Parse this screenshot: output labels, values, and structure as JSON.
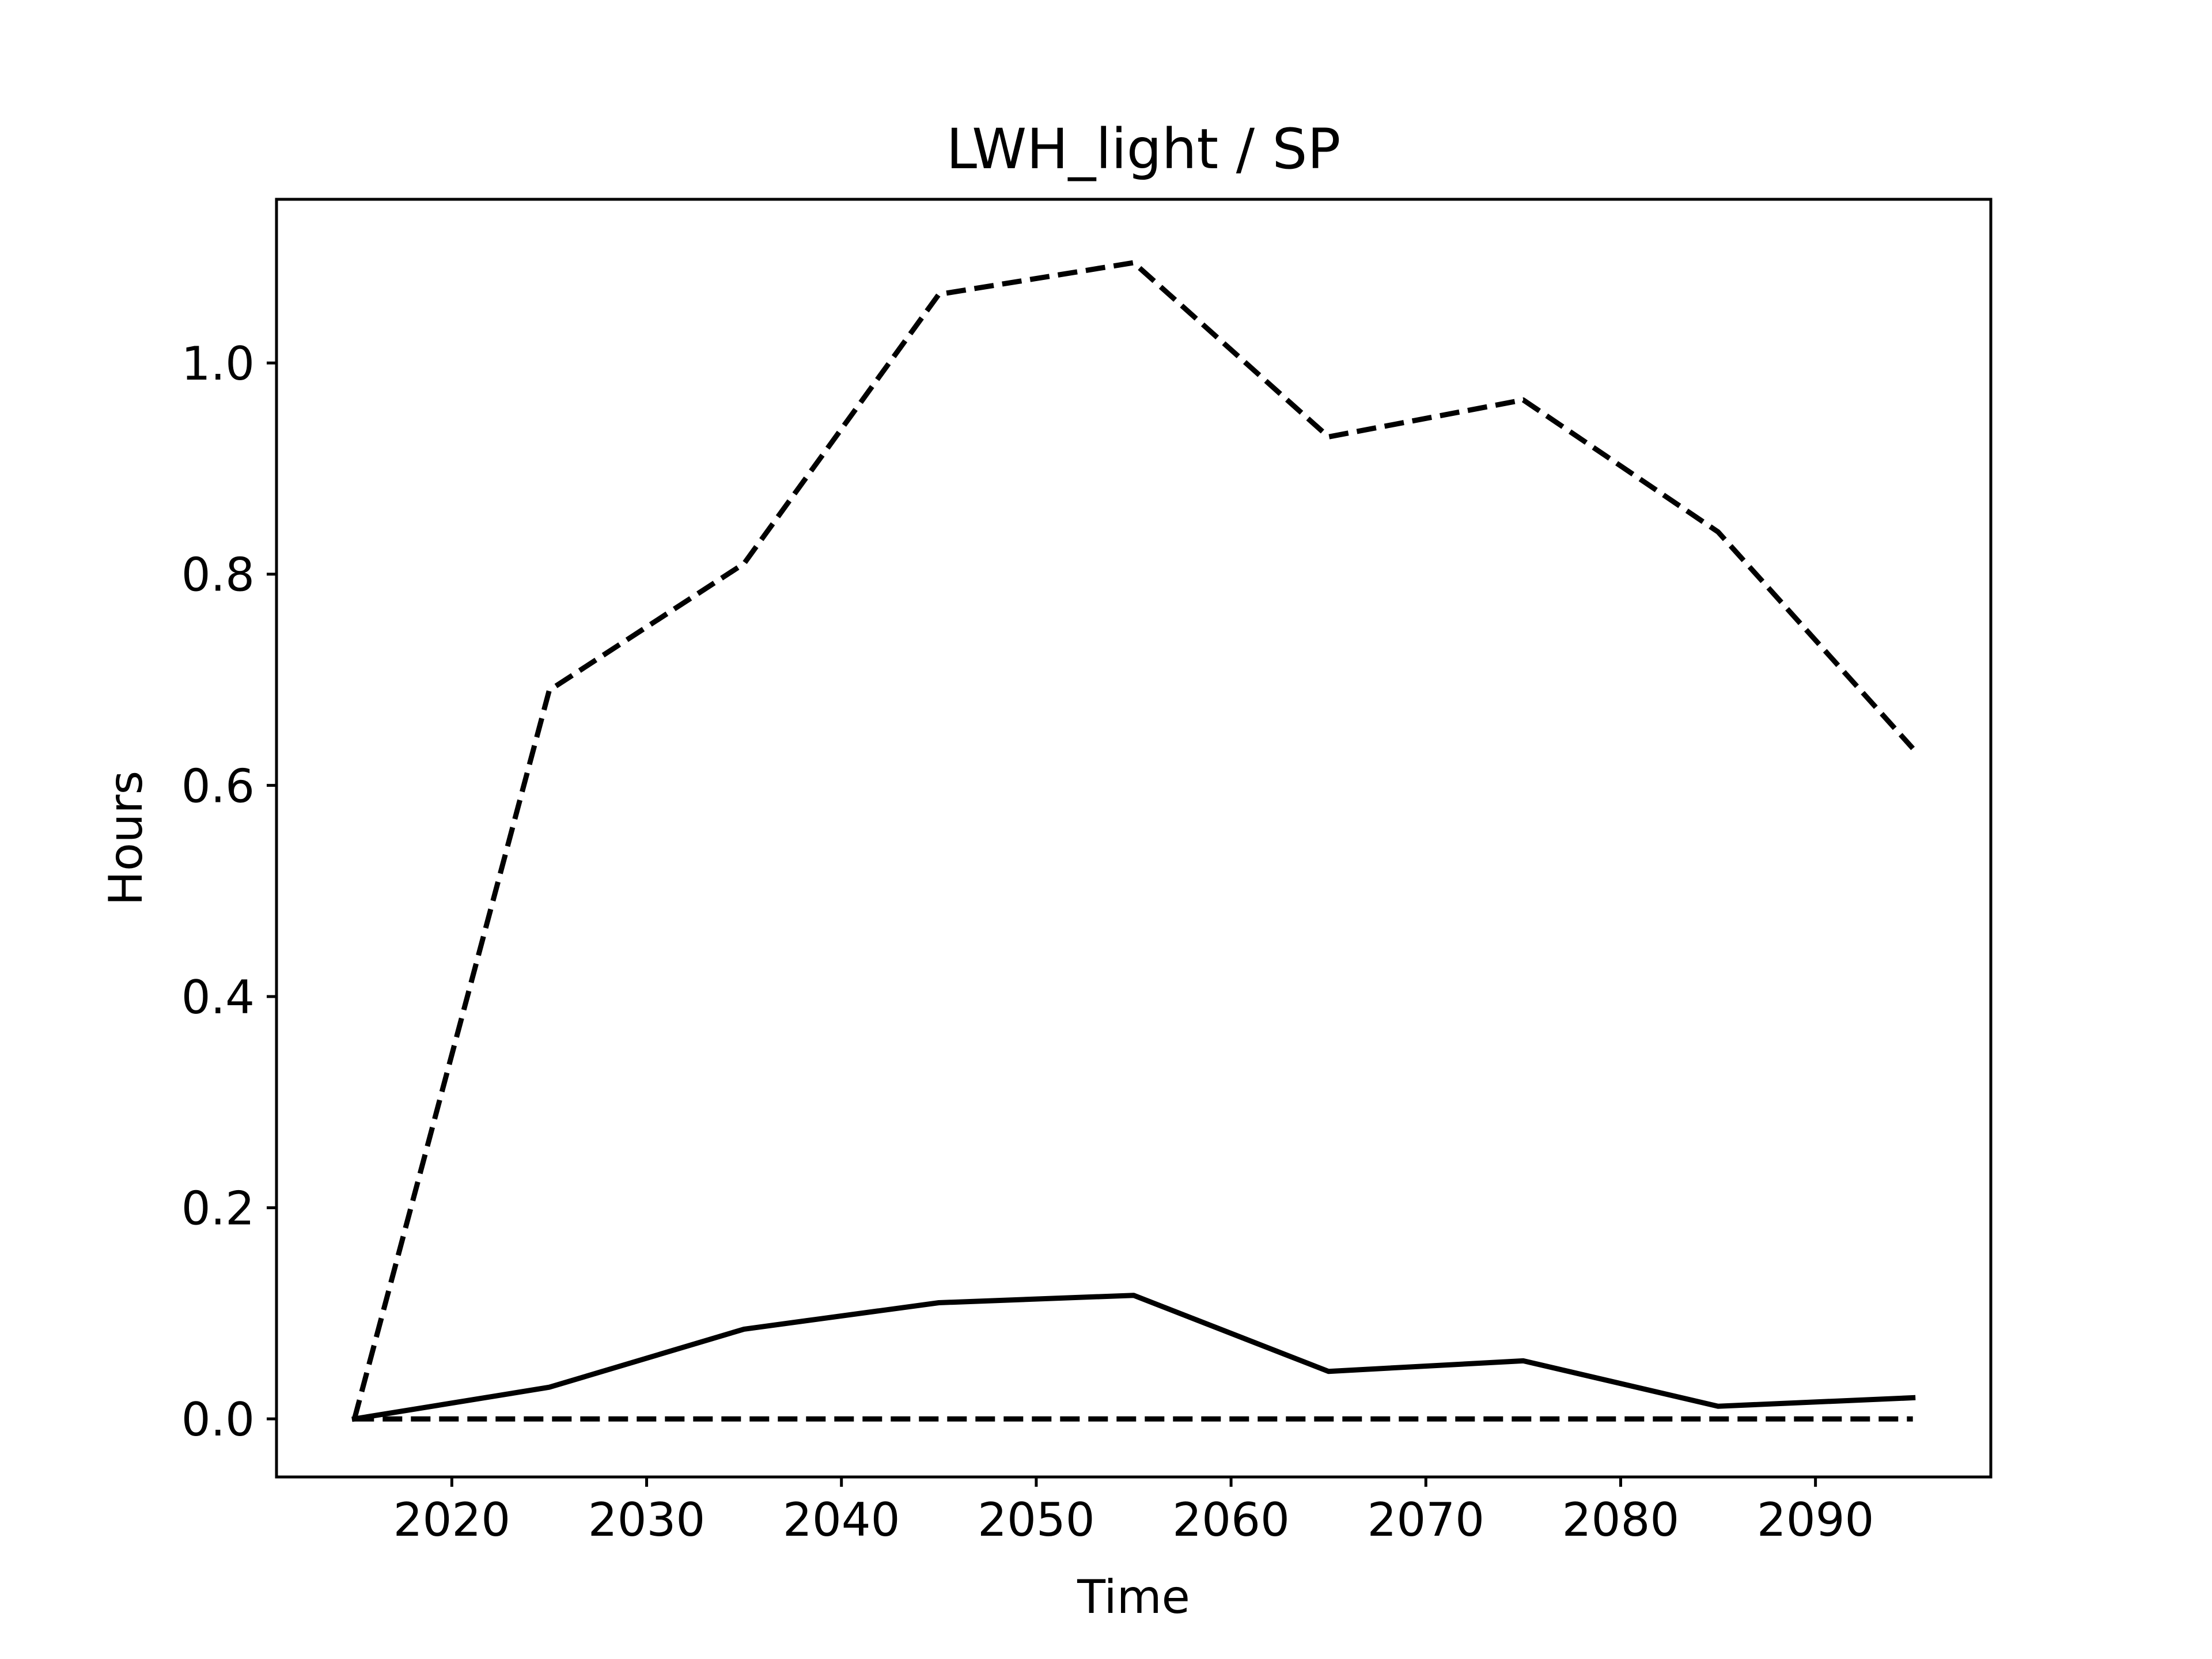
{
  "chart_data": {
    "type": "line",
    "title": "LWH_light / SP",
    "xlabel": "Time",
    "ylabel": "Hours",
    "xlim": [
      2011,
      2099
    ],
    "ylim": [
      -0.055,
      1.155
    ],
    "xticks": [
      2020,
      2030,
      2040,
      2050,
      2060,
      2070,
      2080,
      2090
    ],
    "yticks": [
      0.0,
      0.2,
      0.4,
      0.6,
      0.8,
      1.0
    ],
    "ytick_labels": [
      "0.0",
      "0.2",
      "0.4",
      "0.6",
      "0.8",
      "1.0"
    ],
    "grid": false,
    "legend": "none",
    "x": [
      2015,
      2025,
      2035,
      2045,
      2055,
      2065,
      2075,
      2085,
      2095
    ],
    "series": [
      {
        "style": "solid",
        "color": "#000000",
        "values": [
          0.0,
          0.03,
          0.085,
          0.11,
          0.117,
          0.045,
          0.055,
          0.012,
          0.02
        ]
      },
      {
        "style": "dashed",
        "color": "#000000",
        "values": [
          0.0,
          0.69,
          0.81,
          1.065,
          1.095,
          0.93,
          0.965,
          0.84,
          0.635
        ]
      },
      {
        "style": "dashed",
        "color": "#000000",
        "values": [
          0.0,
          0.0,
          0.0,
          0.0,
          0.0,
          0.0,
          0.0,
          0.0,
          0.0
        ]
      }
    ]
  }
}
